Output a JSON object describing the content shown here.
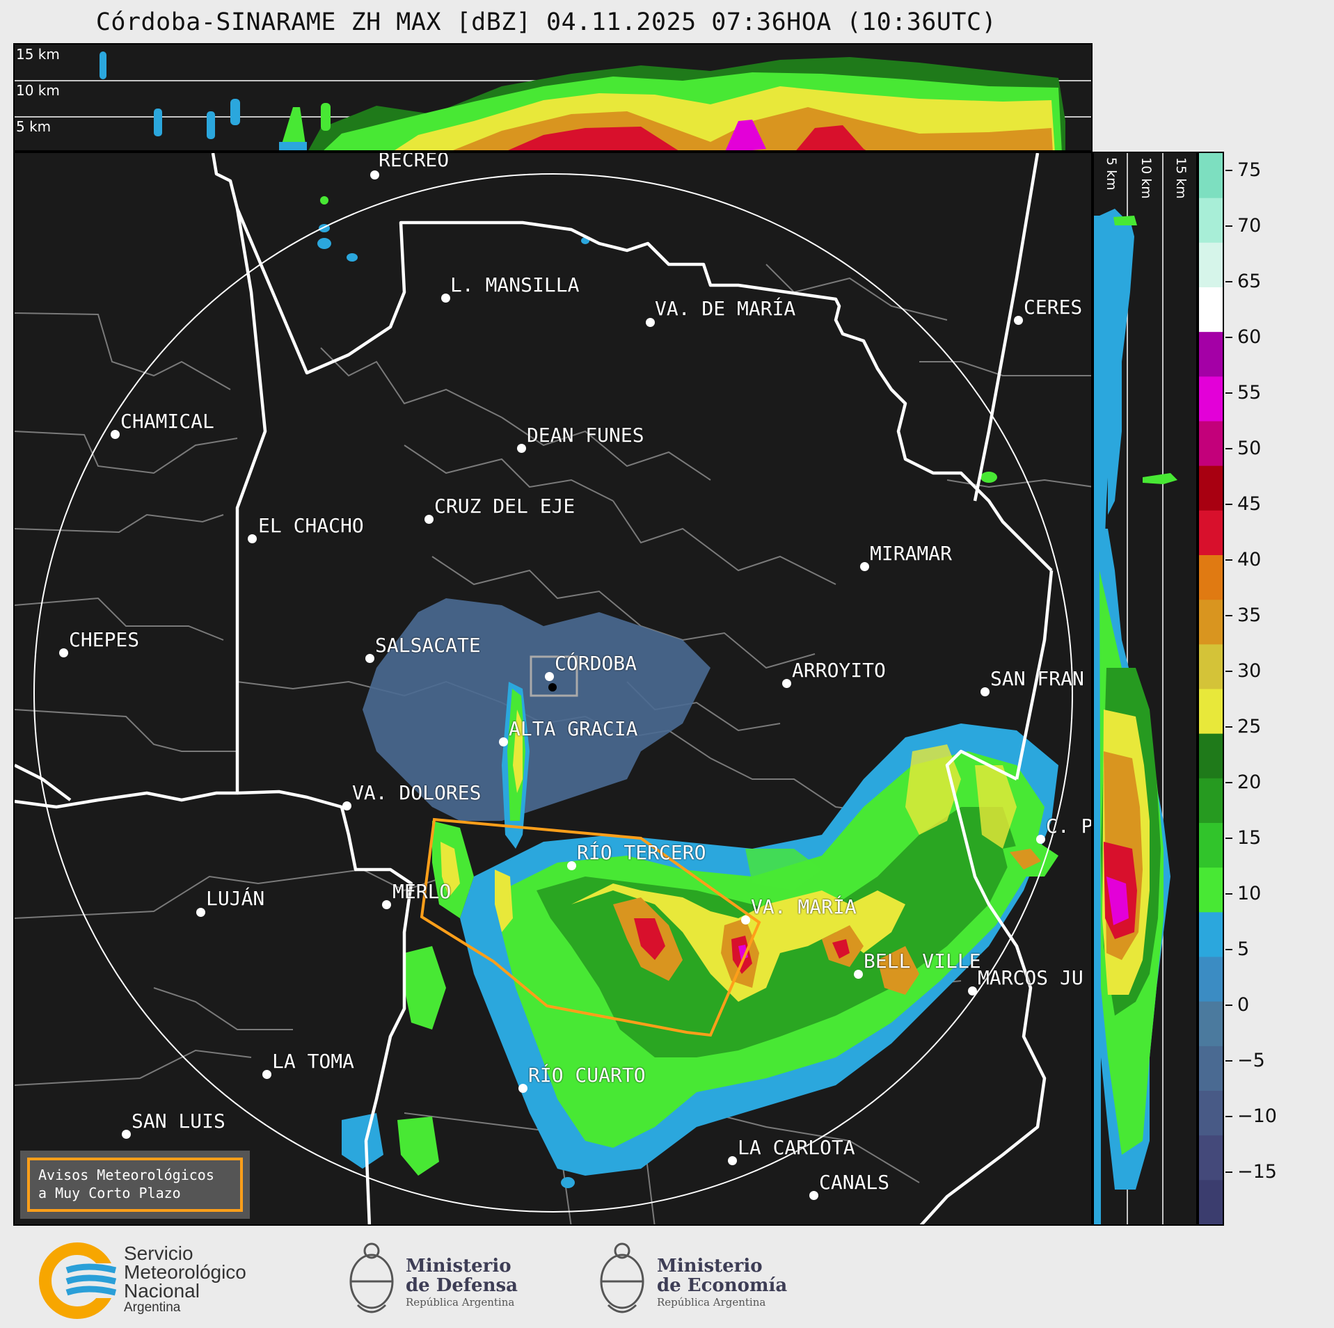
{
  "title": "Córdoba-SINARAME ZH MAX [dBZ] 04.11.2025 07:36HOA (10:36UTC)",
  "top_panel": {
    "levels": [
      "15 km",
      "10 km",
      "5 km"
    ]
  },
  "side_panel": {
    "levels": [
      "5 km",
      "10 km",
      "15 km"
    ]
  },
  "colorbar": {
    "ticks": [
      "75",
      "70",
      "65",
      "60",
      "55",
      "50",
      "45",
      "40",
      "35",
      "30",
      "25",
      "20",
      "15",
      "10",
      "5",
      "0",
      "−5",
      "−10",
      "−15"
    ],
    "colors": [
      "#3b3d6e",
      "#44497a",
      "#485a86",
      "#4a6a92",
      "#4b7a9e",
      "#3b8cc3",
      "#2ba7dd",
      "#48e834",
      "#31c42b",
      "#269a20",
      "#1f7a1a",
      "#e8e83a",
      "#d4c338",
      "#d9951f",
      "#e07a12",
      "#d8102c",
      "#a80011",
      "#c3007a",
      "#e300d8",
      "#a400a6",
      "#ffffff",
      "#d6f5ea",
      "#a8eed7",
      "#7ddfc0"
    ]
  },
  "cities": [
    {
      "name": "RECREO"
    },
    {
      "name": "L. MANSILLA"
    },
    {
      "name": "VA. DE MARÍA"
    },
    {
      "name": "CERES"
    },
    {
      "name": "CHAMICAL"
    },
    {
      "name": "DEAN FUNES"
    },
    {
      "name": "CRUZ DEL EJE"
    },
    {
      "name": "EL CHACHO"
    },
    {
      "name": "MIRAMAR"
    },
    {
      "name": "CHEPES"
    },
    {
      "name": "SALSACATE"
    },
    {
      "name": "CÓRDOBA"
    },
    {
      "name": "ARROYITO"
    },
    {
      "name": "SAN FRAN"
    },
    {
      "name": "ALTA GRACIA"
    },
    {
      "name": "VA. DOLORES"
    },
    {
      "name": "C. P"
    },
    {
      "name": "RÍO TERCERO"
    },
    {
      "name": "LUJÁN"
    },
    {
      "name": "MERLO"
    },
    {
      "name": "VA. MARÍA"
    },
    {
      "name": "BELL VILLE"
    },
    {
      "name": "MARCOS JU"
    },
    {
      "name": "LA TOMA"
    },
    {
      "name": "RÍO CUARTO"
    },
    {
      "name": "SAN LUIS"
    },
    {
      "name": "LA CARLOTA"
    },
    {
      "name": "CANALS"
    }
  ],
  "aviso": {
    "line1": "Avisos Meteorológicos",
    "line2": "a Muy Corto Plazo"
  },
  "footer": {
    "smn": {
      "line1": "Servicio",
      "line2": "Meteorológico",
      "line3": "Nacional",
      "line4": "Argentina"
    },
    "defensa": {
      "line1": "Ministerio",
      "line2": "de Defensa",
      "line3": "República Argentina"
    },
    "economia": {
      "line1": "Ministerio",
      "line2": "de Economía",
      "line3": "República Argentina"
    }
  }
}
